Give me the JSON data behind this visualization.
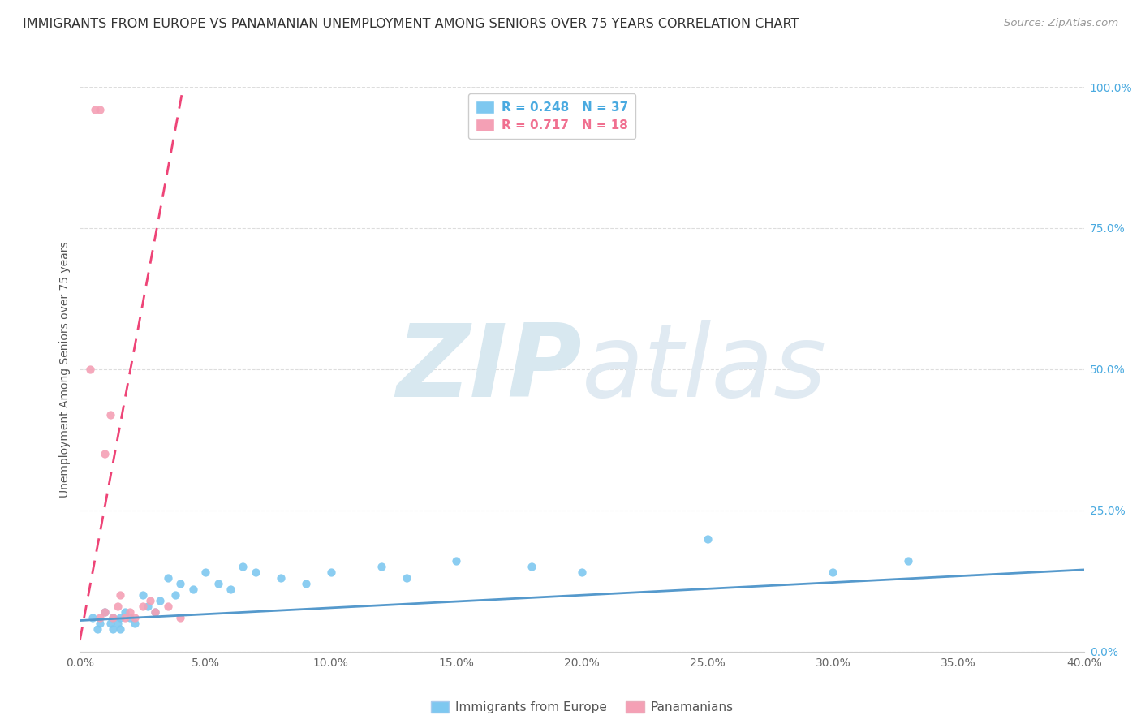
{
  "title": "IMMIGRANTS FROM EUROPE VS PANAMANIAN UNEMPLOYMENT AMONG SENIORS OVER 75 YEARS CORRELATION CHART",
  "source": "Source: ZipAtlas.com",
  "ylabel": "Unemployment Among Seniors over 75 years",
  "watermark_zip": "ZIP",
  "watermark_atlas": "atlas",
  "legend1_label": "Immigrants from Europe",
  "legend2_label": "Panamanians",
  "R1": "0.248",
  "N1": "37",
  "R2": "0.717",
  "N2": "18",
  "color_blue": "#7EC8F0",
  "color_pink": "#F4A0B5",
  "color_blue_text": "#4AAAE0",
  "color_pink_text": "#F07090",
  "color_trendline_blue": "#5599CC",
  "color_trendline_pink": "#EE4477",
  "xlim": [
    0.0,
    0.4
  ],
  "ylim": [
    0.0,
    1.0
  ],
  "right_yticks": [
    0.0,
    0.25,
    0.5,
    0.75,
    1.0
  ],
  "right_yticklabels": [
    "0.0%",
    "25.0%",
    "50.0%",
    "75.0%",
    "100.0%"
  ],
  "xticks": [
    0.0,
    0.05,
    0.1,
    0.15,
    0.2,
    0.25,
    0.3,
    0.35,
    0.4
  ],
  "xticklabels": [
    "0.0%",
    "5.0%",
    "10.0%",
    "15.0%",
    "20.0%",
    "25.0%",
    "30.0%",
    "35.0%",
    "40.0%"
  ],
  "blue_scatter_x": [
    0.005,
    0.007,
    0.008,
    0.01,
    0.012,
    0.013,
    0.013,
    0.015,
    0.016,
    0.016,
    0.018,
    0.02,
    0.022,
    0.025,
    0.027,
    0.03,
    0.032,
    0.035,
    0.038,
    0.04,
    0.045,
    0.05,
    0.055,
    0.06,
    0.065,
    0.07,
    0.08,
    0.09,
    0.1,
    0.12,
    0.13,
    0.15,
    0.18,
    0.2,
    0.25,
    0.3,
    0.33
  ],
  "blue_scatter_y": [
    0.06,
    0.04,
    0.05,
    0.07,
    0.05,
    0.06,
    0.04,
    0.05,
    0.06,
    0.04,
    0.07,
    0.06,
    0.05,
    0.1,
    0.08,
    0.07,
    0.09,
    0.13,
    0.1,
    0.12,
    0.11,
    0.14,
    0.12,
    0.11,
    0.15,
    0.14,
    0.13,
    0.12,
    0.14,
    0.15,
    0.13,
    0.16,
    0.15,
    0.14,
    0.2,
    0.14,
    0.16
  ],
  "pink_scatter_x": [
    0.004,
    0.006,
    0.008,
    0.008,
    0.01,
    0.01,
    0.012,
    0.013,
    0.015,
    0.016,
    0.018,
    0.02,
    0.022,
    0.025,
    0.028,
    0.03,
    0.035,
    0.04
  ],
  "pink_scatter_y": [
    0.5,
    0.96,
    0.96,
    0.06,
    0.07,
    0.35,
    0.42,
    0.06,
    0.08,
    0.1,
    0.06,
    0.07,
    0.06,
    0.08,
    0.09,
    0.07,
    0.08,
    0.06
  ],
  "blue_trend_x": [
    0.0,
    0.4
  ],
  "blue_trend_y": [
    0.055,
    0.145
  ],
  "pink_trend_x": [
    0.0,
    0.042
  ],
  "pink_trend_y": [
    0.02,
    1.02
  ]
}
